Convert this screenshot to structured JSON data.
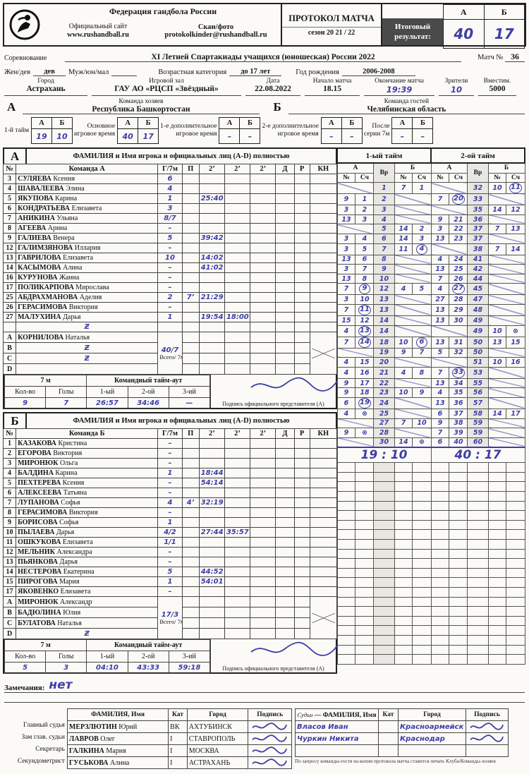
{
  "header": {
    "federation": "Федерация гандбола России",
    "site_label": "Официальный сайт",
    "site_url": "www.rushandball.ru",
    "scan_label": "Скан/фото protokolkinder@rushandball.ru",
    "protocol_title": "ПРОТОКОЛ МАТЧА",
    "season": "сезон 20 21 / 22",
    "final_label": "Итоговый результат:",
    "col_a": "А",
    "col_b": "Б",
    "final_a": "40",
    "final_b": "17"
  },
  "info": {
    "competition_label": "Соревнование",
    "competition": "XI Летней Спартакиады учащихся (юношеская) России 2022",
    "match_no_label": "Матч №",
    "match_no": "36",
    "sex_label1": "Жен/дев",
    "sex_value": "дев",
    "sex_label2": "Муж/юн/мал",
    "sex_value2": "",
    "age_label": "Возрастная категория",
    "age_value": "до 17 лет",
    "birth_label": "Год рождения",
    "birth_value": "2006-2008",
    "city_label": "Город",
    "city": "Астрахань",
    "hall_label": "Игровой зал",
    "hall": "ГАУ АО «РЦСП «Звёздный»",
    "date_label": "Дата",
    "date": "22.08.2022",
    "start_label": "Начало матча",
    "start": "18.15",
    "end_label": "Окончание матча",
    "end": "19:39",
    "spect_label": "Зрители",
    "spect": "10",
    "cap_label": "Вместим.",
    "cap": "5000"
  },
  "teams": {
    "a_letter": "А",
    "a_role": "Команда хозяев",
    "a_name": "Республика Башкортостан",
    "b_letter": "Б",
    "b_role": "Команда гостей",
    "b_name": "Челябинская область"
  },
  "periods": [
    {
      "label": "1-й тайм",
      "a": "19",
      "b": "10",
      "hw": true
    },
    {
      "label": "Основное|игровое время",
      "a": "40",
      "b": "17",
      "hw": true
    },
    {
      "label": "1-е дополнительное|игровое время",
      "a": "–",
      "b": "–",
      "hw": true
    },
    {
      "label": "2-е дополнительное|игровое время",
      "a": "–",
      "b": "–",
      "hw": true
    },
    {
      "label": "После|серии 7м",
      "a": "–",
      "b": "–",
      "hw": true
    }
  ],
  "table_a": {
    "letter": "А",
    "title": "ФАМИЛИЯ и Имя игрока и официальных лиц (A-D) полностью",
    "cols": [
      "№",
      "Команда А",
      "Г/7м",
      "П",
      "2’",
      "2’",
      "2’",
      "Д",
      "Р",
      "КН"
    ],
    "players": [
      [
        "3",
        "СУЛЯЕВА Ксения",
        "6",
        "",
        "",
        ""
      ],
      [
        "4",
        "ШАВАЛЕЕВА Элина",
        "4",
        "",
        "",
        ""
      ],
      [
        "5",
        "ЯКУПОВА Карина",
        "1",
        "",
        "25:40",
        ""
      ],
      [
        "6",
        "КОНДРАТЬЕВА Елизавета",
        "3",
        "",
        "",
        ""
      ],
      [
        "7",
        "АНИКИНА Ульяна",
        "8/7",
        "",
        "",
        ""
      ],
      [
        "8",
        "АГЕЕВА Арина",
        "–",
        "",
        "",
        ""
      ],
      [
        "9",
        "ГАЛИЕВА Венера",
        "5",
        "",
        "39:42",
        ""
      ],
      [
        "12",
        "ГАЛИМЗЯНОВА Иллария",
        "–",
        "",
        "",
        ""
      ],
      [
        "13",
        "ГАВРИЛОВА Елизавета",
        "10",
        "",
        "14:02",
        ""
      ],
      [
        "14",
        "КАСЫМОВА Алина",
        "–",
        "",
        "41:02",
        ""
      ],
      [
        "16",
        "КУРУНОВА Жанна",
        "–",
        "",
        "",
        ""
      ],
      [
        "17",
        "ПОЛИКАРПОВА Мирослава",
        "–",
        "",
        "",
        ""
      ],
      [
        "25",
        "АБДРАХМАНОВА Аделия",
        "2",
        "7’",
        "21:29",
        ""
      ],
      [
        "26",
        "ГЕРАСИМОВА Виктория",
        "–",
        "",
        "",
        ""
      ],
      [
        "27",
        "МАЛУХИНА Дарья",
        "1",
        "",
        "19:54",
        "18:00"
      ],
      [
        "",
        "Ƶ",
        "",
        "",
        "",
        ""
      ]
    ],
    "officials": [
      [
        "A",
        "КОРНИЛОВА Наталья"
      ],
      [
        "B",
        "Ƶ"
      ],
      [
        "C",
        "Ƶ"
      ],
      [
        "D",
        ""
      ]
    ],
    "total": "40/7",
    "total_label": "Всего/ 7м",
    "sevenm": {
      "label": "7 м",
      "qty_label": "Кол-во",
      "goals_label": "Голы",
      "qty": "9",
      "goals": "7"
    },
    "timeouts": {
      "label": "Командный тайм-аут",
      "c1": "1-ый",
      "c2": "2-ой",
      "c3": "3-ий",
      "t1": "26:57",
      "t2": "34:46",
      "t3": "—"
    },
    "sign_label": "Подпись официального представителя (А)"
  },
  "table_b": {
    "letter": "Б",
    "title": "ФАМИЛИЯ и Имя игрока и официальных лиц (A-D) полностью",
    "cols": [
      "№",
      "Команда Б",
      "Г/7м",
      "П",
      "2’",
      "2’",
      "2’",
      "Д",
      "Р",
      "КН"
    ],
    "players": [
      [
        "1",
        "КАЗАКОВА Кристина",
        "–",
        "",
        "",
        ""
      ],
      [
        "2",
        "ЕГОРОВА Виктория",
        "–",
        "",
        "",
        ""
      ],
      [
        "3",
        "МИРОНЮК Ольга",
        "–",
        "",
        "",
        ""
      ],
      [
        "4",
        "БАЛДИНА Карина",
        "1",
        "",
        "18:44",
        ""
      ],
      [
        "5",
        "ПЕХТЕРЕВА Ксения",
        "–",
        "",
        "54:14",
        ""
      ],
      [
        "6",
        "АЛЕКСЕЕВА Татьяна",
        "–",
        "",
        "",
        ""
      ],
      [
        "7",
        "ЛУПАНОВА Софья",
        "4",
        "4’",
        "32:19",
        ""
      ],
      [
        "8",
        "ГЕРАСИМОВА Виктория",
        "–",
        "",
        "",
        ""
      ],
      [
        "9",
        "БОРИСОВА Софья",
        "1",
        "",
        "",
        ""
      ],
      [
        "10",
        "ПЫЛАЕВА Дарья",
        "4/2",
        "",
        "27:44",
        "35:57"
      ],
      [
        "11",
        "ОШКУКОВА Елизавета",
        "1/1",
        "",
        "",
        ""
      ],
      [
        "12",
        "МЕЛЬНИК Александра",
        "–",
        "",
        "",
        ""
      ],
      [
        "13",
        "ПЬЯНКОВА Дарья",
        "–",
        "",
        "",
        ""
      ],
      [
        "14",
        "НЕСТЕРОВА Екатерина",
        "5",
        "",
        "44:52",
        ""
      ],
      [
        "15",
        "ПИРОГОВА Мария",
        "1",
        "",
        "54:01",
        ""
      ],
      [
        "17",
        "ЯКОВЕНКО Елизавета",
        "–",
        "",
        "",
        ""
      ]
    ],
    "officials": [
      [
        "A",
        "МИРОНЮК Александр"
      ],
      [
        "B",
        "БАДЮЛИНА Юлия"
      ],
      [
        "C",
        "БУЛАТОВА Наталья"
      ],
      [
        "D",
        "Ƶ"
      ]
    ],
    "total": "17/3",
    "total_label": "Всего/ 7м",
    "sevenm": {
      "label": "7 м",
      "qty_label": "Кол-во",
      "goals_label": "Голы",
      "qty": "5",
      "goals": "3"
    },
    "timeouts": {
      "label": "Командный тайм-аут",
      "c1": "1-ый",
      "c2": "2-ой",
      "c3": "3-ий",
      "t1": "04:10",
      "t2": "43:33",
      "t3": "59:18"
    },
    "sign_label": "Подпись официального представителя (А)"
  },
  "goal_log": {
    "half1_title": "1-ый тайм",
    "half2_title": "2-ой тайм",
    "col_a": "А",
    "col_b": "Б",
    "col_vr": "Вр",
    "col_no": "№",
    "col_sc": "Сч",
    "half1": [
      [
        "",
        "",
        "1",
        "7",
        "1"
      ],
      [
        "9",
        "1",
        "2",
        "",
        ""
      ],
      [
        "3",
        "2",
        "3",
        "",
        ""
      ],
      [
        "13",
        "3",
        "4",
        "",
        ""
      ],
      [
        "",
        "",
        "5",
        "14",
        "2"
      ],
      [
        "3",
        "4",
        "6",
        "14",
        "3"
      ],
      [
        "3",
        "5",
        "7",
        "11",
        "(4)"
      ],
      [
        "13",
        "6",
        "8",
        "",
        ""
      ],
      [
        "3",
        "7",
        "9",
        "",
        ""
      ],
      [
        "13",
        "8",
        "10",
        "",
        ""
      ],
      [
        "7",
        "(9)",
        "12",
        "4",
        "5"
      ],
      [
        "3",
        "10",
        "13",
        "",
        ""
      ],
      [
        "7",
        "(11)",
        "13",
        "",
        ""
      ],
      [
        "15",
        "12",
        "14",
        "",
        ""
      ],
      [
        "4",
        "(13)",
        "14",
        "",
        ""
      ],
      [
        "7",
        "(14)",
        "18",
        "10",
        "(6)"
      ],
      [
        "",
        "",
        "19",
        "9",
        "7"
      ],
      [
        "4",
        "15",
        "20",
        "",
        ""
      ],
      [
        "4",
        "16",
        "21",
        "4",
        "8"
      ],
      [
        "9",
        "17",
        "22",
        "",
        ""
      ],
      [
        "9",
        "18",
        "23",
        "10",
        "9"
      ],
      [
        "6",
        "(19)",
        "24",
        "",
        ""
      ],
      [
        "4",
        "⊗",
        "25",
        "",
        ""
      ],
      [
        "",
        "",
        "27",
        "7",
        "10"
      ],
      [
        "9",
        "⊗",
        "28",
        "",
        ""
      ],
      [
        "",
        "",
        "30",
        "14",
        "⊗"
      ]
    ],
    "half1_total": "19 : 10",
    "half2": [
      [
        "",
        "",
        "32",
        "10",
        "(11)"
      ],
      [
        "7",
        "(20)",
        "33",
        "",
        ""
      ],
      [
        "",
        "",
        "35",
        "14",
        "12"
      ],
      [
        "9",
        "21",
        "36",
        "",
        ""
      ],
      [
        "3",
        "22",
        "37",
        "7",
        "13"
      ],
      [
        "13",
        "23",
        "37",
        "",
        ""
      ],
      [
        "",
        "",
        "38",
        "7",
        "14"
      ],
      [
        "4",
        "24",
        "41",
        "",
        ""
      ],
      [
        "13",
        "25",
        "42",
        "",
        ""
      ],
      [
        "7",
        "26",
        "44",
        "",
        ""
      ],
      [
        "4",
        "(27)",
        "45",
        "",
        ""
      ],
      [
        "27",
        "28",
        "47",
        "",
        ""
      ],
      [
        "13",
        "29",
        "48",
        "",
        ""
      ],
      [
        "13",
        "30",
        "49",
        "",
        ""
      ],
      [
        "",
        "",
        "49",
        "10",
        "⊗"
      ],
      [
        "13",
        "31",
        "50",
        "13",
        "15"
      ],
      [
        "5",
        "32",
        "50",
        "",
        ""
      ],
      [
        "",
        "",
        "51",
        "10",
        "16"
      ],
      [
        "7",
        "(33)",
        "53",
        "",
        ""
      ],
      [
        "13",
        "34",
        "55",
        "",
        ""
      ],
      [
        "4",
        "35",
        "56",
        "",
        ""
      ],
      [
        "13",
        "36",
        "57",
        "",
        ""
      ],
      [
        "6",
        "37",
        "58",
        "14",
        "17"
      ],
      [
        "9",
        "38",
        "59",
        "",
        ""
      ],
      [
        "7",
        "39",
        "59",
        "",
        ""
      ],
      [
        "6",
        "40",
        "60",
        "",
        ""
      ]
    ],
    "half2_total": "40 : 17"
  },
  "remarks": {
    "label": "Замечания:",
    "value": "нет"
  },
  "officials_table": {
    "cols": [
      "ФАМИЛИЯ, Имя",
      "Кат",
      "Город",
      "Подпись"
    ],
    "rows": [
      {
        "role": "Главный судья",
        "name": "МЕРЗЛЮТИН Юрий",
        "cat": "ВК",
        "city": "АХТУБИНСК"
      },
      {
        "role": "Зам глав. судьи",
        "name": "ЛАВРОВ Олег",
        "cat": "I",
        "city": "СТАВРОПОЛЬ"
      },
      {
        "role": "Секретарь",
        "name": "ГАЛКИНА Мария",
        "cat": "I",
        "city": "МОСКВА"
      },
      {
        "role": "Секундометрист",
        "name": "ГУСЬКОВА Алина",
        "cat": "I",
        "city": "АСТРАХАНЬ"
      }
    ]
  },
  "judges_table": {
    "role_label": "Судьи",
    "cols": [
      "ФАМИЛИЯ, Имя",
      "Кат",
      "Город",
      "Подпись"
    ],
    "rows": [
      {
        "name": "Власов Иван",
        "city": "Красноармейск"
      },
      {
        "name": "Чуркин Никита",
        "city": "Краснодар"
      },
      {
        "name": "",
        "city": ""
      }
    ],
    "note": "По запросу команды-гостя на копии протокола матча ставится печать Клуба/Команды-хозяев"
  }
}
